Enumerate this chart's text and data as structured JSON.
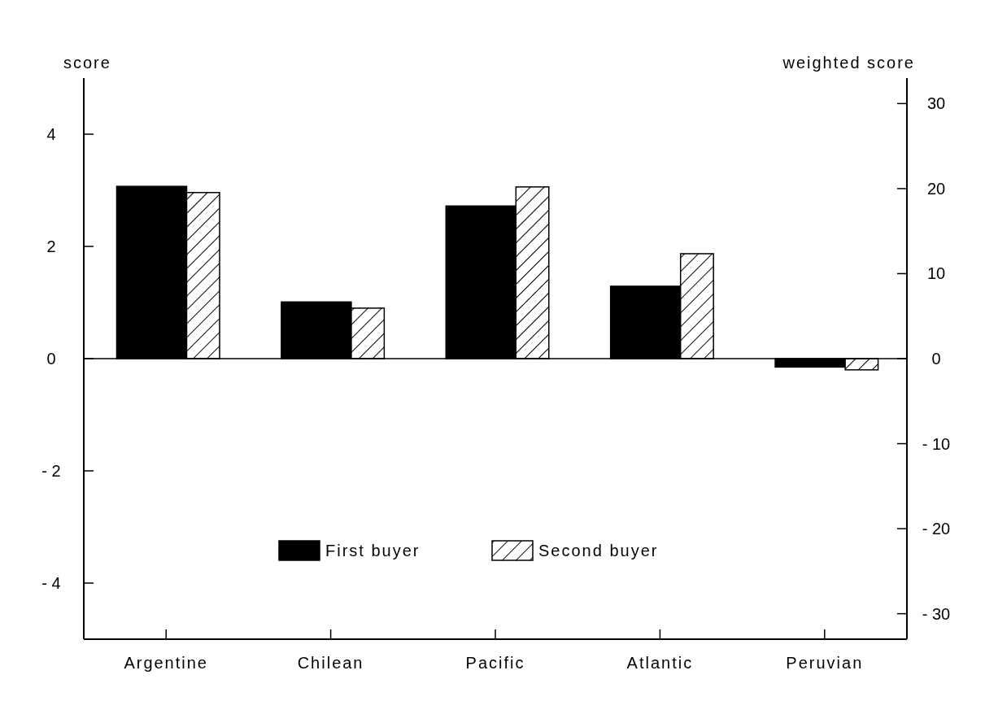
{
  "chart_data": {
    "type": "bar",
    "ylabel": "score",
    "y2label": "weighted score",
    "categories": [
      "Argentine",
      "Chilean",
      "Pacific",
      "Atlantic",
      "Peruvian"
    ],
    "series": [
      {
        "name": "First buyer",
        "color": "#000000",
        "values": [
          3.07,
          1.01,
          2.72,
          1.29,
          -0.15
        ]
      },
      {
        "name": "Second buyer",
        "color": "#000000",
        "values": [
          2.96,
          0.9,
          3.06,
          1.87,
          -0.2
        ]
      }
    ],
    "ylim": [
      -5,
      5
    ],
    "yticks": [
      {
        "value": -4,
        "label": "- 4"
      },
      {
        "value": -2,
        "label": "- 2"
      },
      0,
      2,
      4
    ],
    "y2lim": [
      -33,
      33
    ],
    "y2ticks": [
      {
        "value": -30,
        "label": "- 30"
      },
      {
        "value": -20,
        "label": "- 20"
      },
      {
        "value": -10,
        "label": "- 10"
      },
      0,
      10,
      20,
      30
    ],
    "legend": "bottom"
  }
}
